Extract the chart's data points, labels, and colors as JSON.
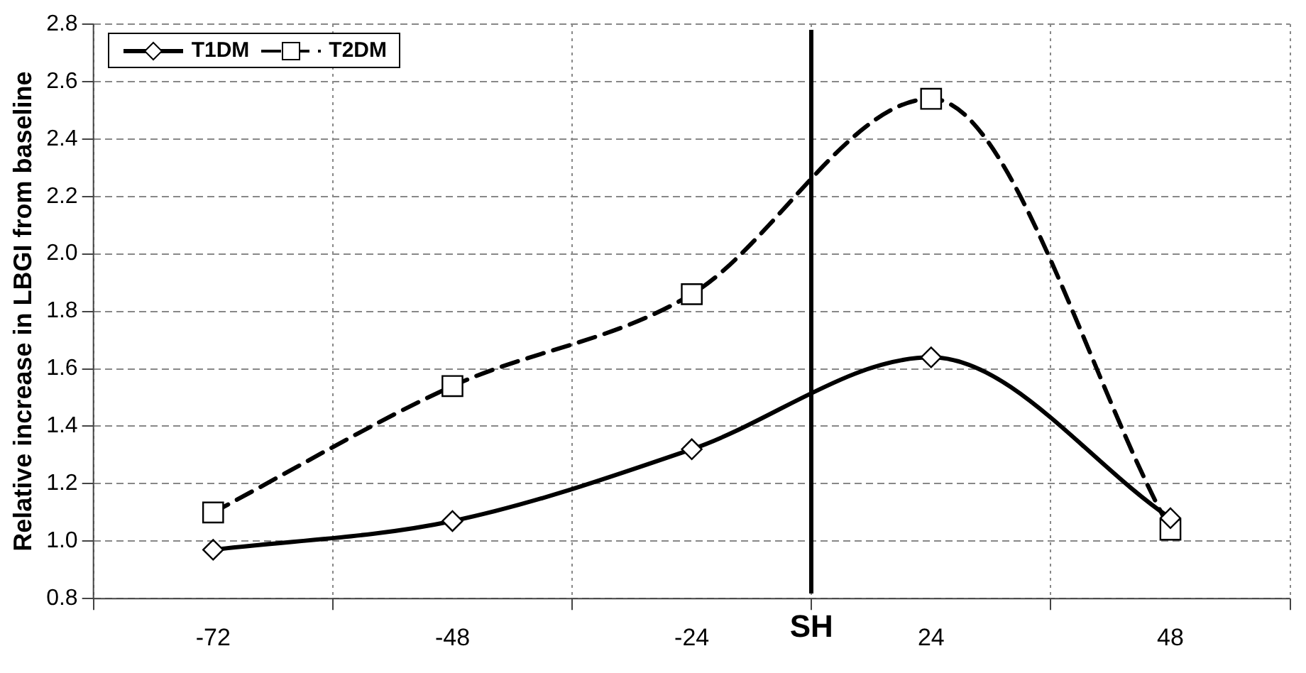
{
  "chart_data": {
    "type": "line",
    "ylabel": "Relative increase in LBGI from baseline",
    "categories": [
      "-72",
      "-48",
      "-24",
      "24",
      "48"
    ],
    "series": [
      {
        "name": "T1DM",
        "color": "#000000",
        "marker": "diamond",
        "line_style": "solid",
        "values": [
          0.97,
          1.07,
          1.32,
          1.64,
          1.08
        ]
      },
      {
        "name": "T2DM",
        "color": "#000000",
        "marker": "square",
        "line_style": "dashed",
        "values": [
          1.1,
          1.54,
          1.86,
          2.54,
          1.04
        ]
      }
    ],
    "ylim": [
      0.8,
      2.8
    ],
    "yticks": [
      {
        "value": 0.8,
        "label": "0.8"
      },
      {
        "value": 1.0,
        "label": "1.0"
      },
      {
        "value": 1.2,
        "label": "1.2"
      },
      {
        "value": 1.4,
        "label": "1.4"
      },
      {
        "value": 1.6,
        "label": "1.6"
      },
      {
        "value": 1.8,
        "label": "1.8"
      },
      {
        "value": 2.0,
        "label": "2.0"
      },
      {
        "value": 2.2,
        "label": "2.2"
      },
      {
        "value": 2.4,
        "label": "2.4"
      },
      {
        "value": 2.6,
        "label": "2.6"
      },
      {
        "value": 2.8,
        "label": "2.8"
      }
    ],
    "annotations": [
      "SH"
    ],
    "grid": true,
    "legend": "top left"
  }
}
